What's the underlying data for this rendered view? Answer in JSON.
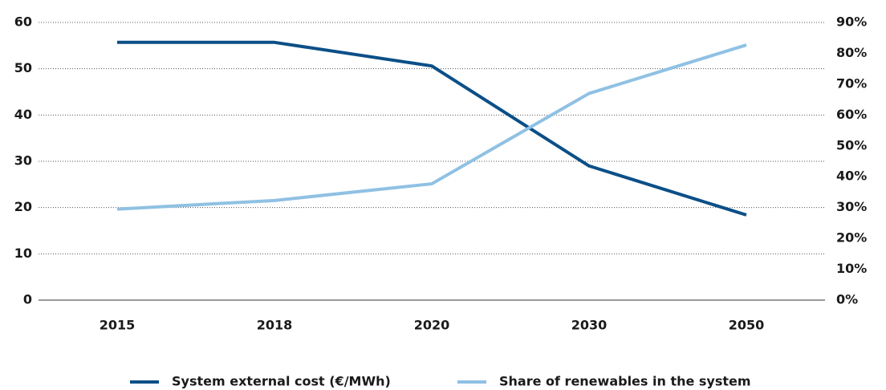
{
  "chart_data": {
    "type": "line",
    "categories": [
      "2015",
      "2018",
      "2020",
      "2030",
      "2050"
    ],
    "series": [
      {
        "name": "System external cost (€/MWh)",
        "color": "#0b4f87",
        "values": [
          55.7,
          55.7,
          50.6,
          29,
          18.4
        ]
      },
      {
        "name": "Share of renewables in the system",
        "color": "#8fc1e3",
        "axis": "y2",
        "values": [
          29.5,
          32.3,
          37.7,
          67,
          82.7
        ]
      }
    ],
    "ylim": [
      0,
      60
    ],
    "yticks": [
      0,
      10,
      20,
      30,
      40,
      50,
      60
    ],
    "y2lim": [
      0,
      90
    ],
    "y2ticks": [
      {
        "value": 0,
        "label": "0%"
      },
      {
        "value": 10,
        "label": "10%"
      },
      {
        "value": 20,
        "label": "20%"
      },
      {
        "value": 30,
        "label": "30%"
      },
      {
        "value": 40,
        "label": "40%"
      },
      {
        "value": 50,
        "label": "50%"
      },
      {
        "value": 60,
        "label": "60%"
      },
      {
        "value": 70,
        "label": "70%"
      },
      {
        "value": 80,
        "label": "80%"
      },
      {
        "value": 90,
        "label": "90%"
      }
    ],
    "grid": true,
    "legend": "bottom"
  }
}
